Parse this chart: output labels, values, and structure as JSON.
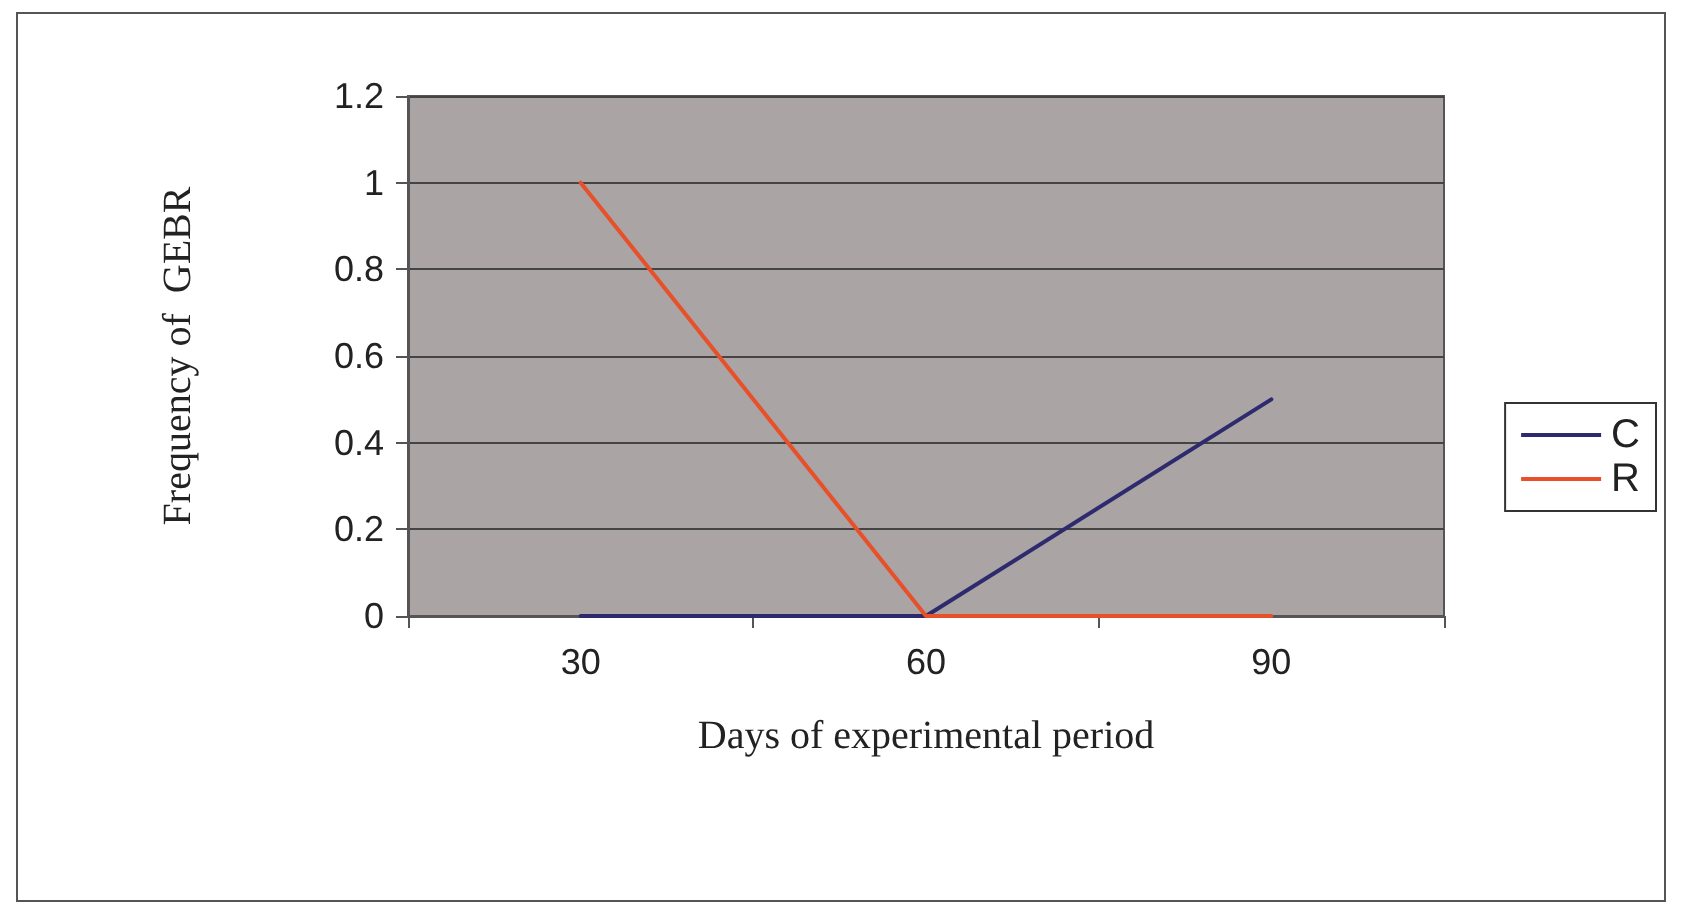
{
  "chart_data": {
    "type": "line",
    "xlabel": "Days of experimental period",
    "ylabel": "Frequency of  GEBR",
    "categories": [
      "30",
      "60",
      "90"
    ],
    "series": [
      {
        "name": "C",
        "color": "#2e2a6e",
        "values": [
          0,
          0,
          0.5
        ]
      },
      {
        "name": "R",
        "color": "#e8502a",
        "values": [
          1,
          0,
          0
        ]
      }
    ],
    "ylim": [
      0,
      1.2
    ],
    "yticks": [
      0,
      0.2,
      0.4,
      0.6,
      0.8,
      1,
      1.2
    ],
    "grid": "y",
    "legend": "right",
    "marker": "none",
    "line_style": "solid"
  }
}
